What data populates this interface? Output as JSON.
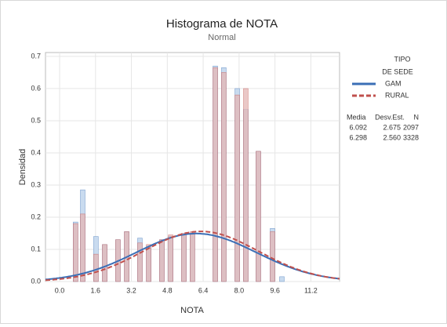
{
  "chart_data": {
    "type": "histogram",
    "title": "Histograma de NOTA",
    "subtitle": "Normal",
    "x_label": "NOTA",
    "y_label": "Densidad",
    "x": [
      0.71,
      1.03,
      1.62,
      2.01,
      2.6,
      2.99,
      3.58,
      3.97,
      4.56,
      4.95,
      5.54,
      5.92,
      6.94,
      7.32,
      7.92,
      8.3,
      8.86,
      9.49,
      9.91
    ],
    "series": [
      {
        "name": "GAM",
        "color": "#3b6fb6",
        "fill": "#c9dbef",
        "values": [
          0.185,
          0.285,
          0.14,
          0.115,
          0.13,
          0.155,
          0.135,
          0.11,
          0.13,
          0.14,
          0.145,
          0.15,
          0.67,
          0.665,
          0.6,
          0.535,
          0.405,
          0.165,
          0.015
        ],
        "mean": 6.092,
        "sd": 2.675,
        "n": 2097
      },
      {
        "name": "RURAL",
        "color": "#c0504d",
        "fill": "#e3b5b4",
        "values": [
          0.18,
          0.21,
          0.085,
          0.115,
          0.13,
          0.155,
          0.12,
          0.115,
          0.13,
          0.145,
          0.15,
          0.155,
          0.665,
          0.65,
          0.58,
          0.6,
          0.405,
          0.155,
          0.0
        ],
        "mean": 6.298,
        "sd": 2.56,
        "sd_label": "2.560",
        "n": 3328
      }
    ],
    "legend_title": [
      "TIPO",
      "DE SEDE"
    ],
    "stats_headers": [
      "Media",
      "Desv.Est.",
      "N"
    ],
    "xlim": [
      -0.63,
      12.48
    ],
    "ylim": [
      0,
      0.712
    ],
    "xticks": [
      {
        "value": 0,
        "label": "0.0"
      },
      1.6,
      3.2,
      4.8,
      6.4,
      {
        "value": 8,
        "label": "8.0"
      },
      9.6,
      11.2
    ],
    "yticks": [
      {
        "value": 0,
        "label": "0.0"
      },
      0.1,
      0.2,
      0.3,
      0.4,
      0.5,
      0.6,
      0.7
    ],
    "grid": true,
    "legend_position": "right"
  }
}
